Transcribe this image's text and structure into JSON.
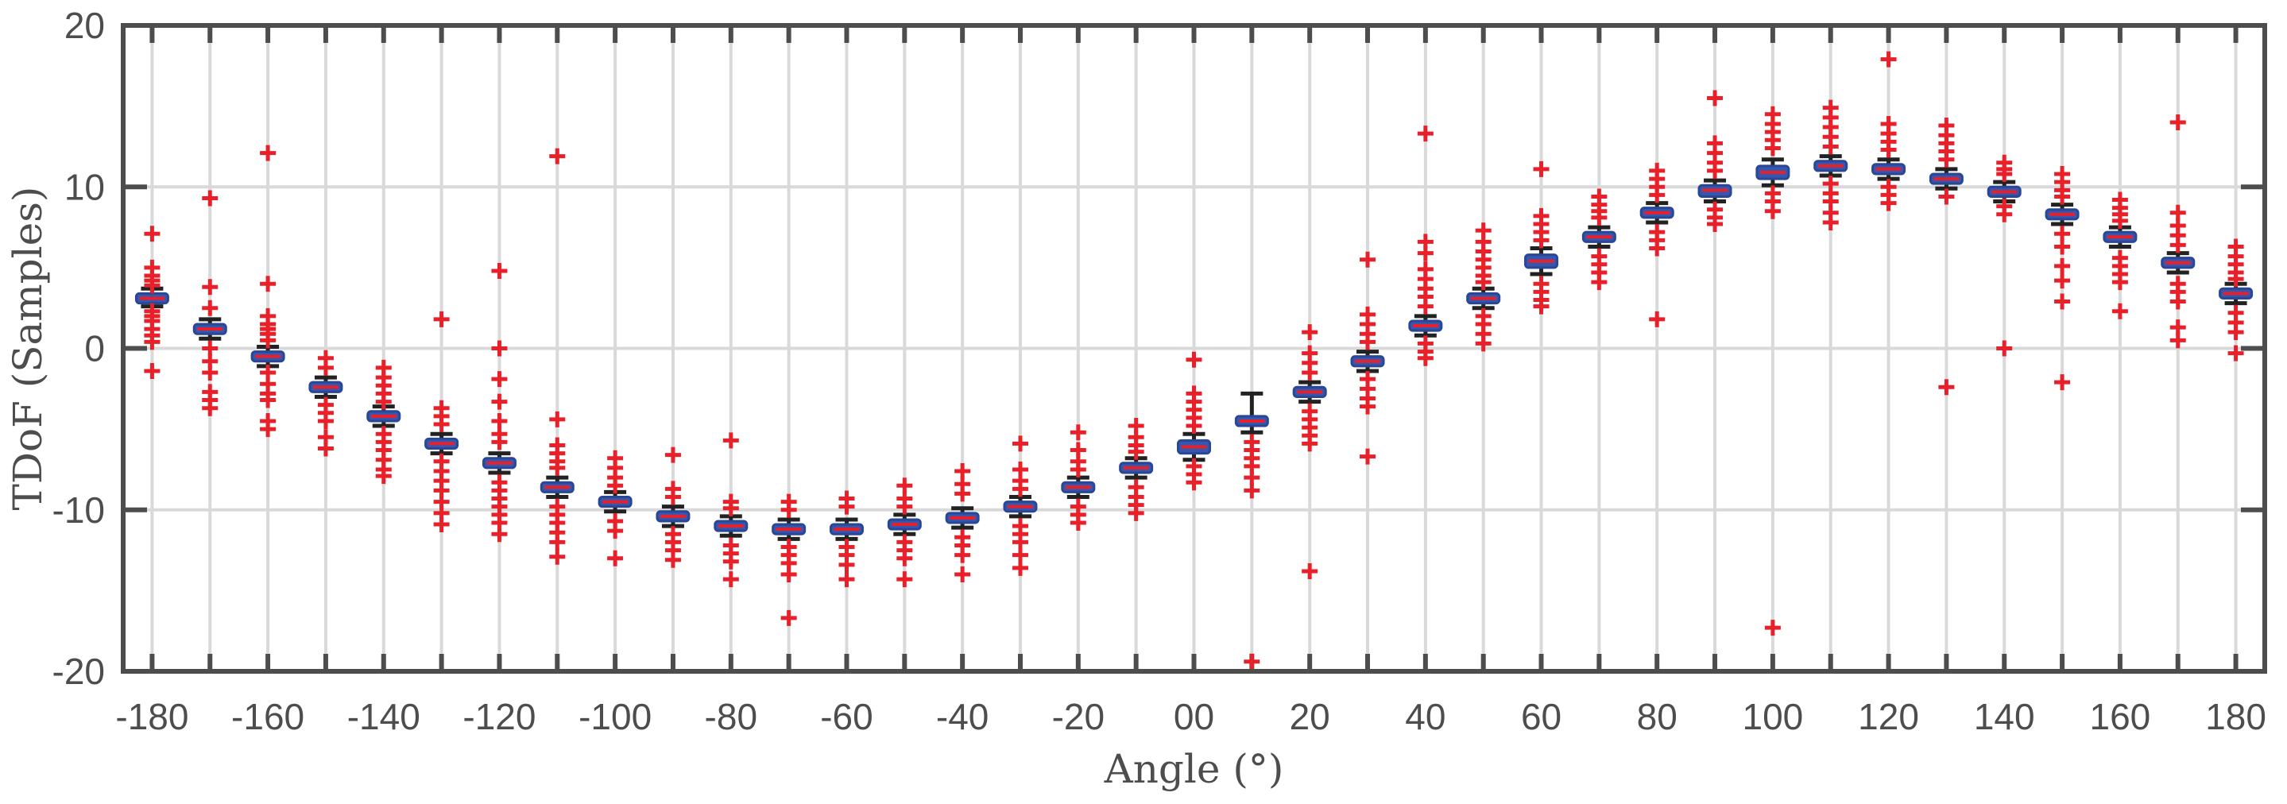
{
  "chart_data": {
    "type": "box",
    "xlabel": "Angle (°)",
    "ylabel": "TDoF (Samples)",
    "xlim": [
      -185,
      185
    ],
    "ylim": [
      -20,
      20
    ],
    "x_ticks": [
      -180,
      -160,
      -140,
      -120,
      -100,
      -80,
      -60,
      -40,
      -20,
      0,
      20,
      40,
      60,
      80,
      100,
      120,
      140,
      160,
      180
    ],
    "x_tick_labels": [
      "-180",
      "-160",
      "-140",
      "-120",
      "-100",
      "-80",
      "-60",
      "-40",
      "-20",
      "00",
      "20",
      "40",
      "60",
      "80",
      "100",
      "120",
      "140",
      "160",
      "180"
    ],
    "y_ticks": [
      -20,
      -10,
      0,
      10,
      20
    ],
    "y_tick_labels": [
      "-20",
      "-10",
      "0",
      "10",
      "20"
    ],
    "grid": true,
    "colors": {
      "box": "#3557b0",
      "median": "#e8202a",
      "outlier": "#e8202a",
      "whisker": "#222222",
      "axis": "#4d4d4d",
      "grid": "#d9d9d9"
    },
    "boxes": [
      {
        "angle": -180,
        "median": 3.1,
        "q1": 2.8,
        "q3": 3.4,
        "whisker_low": 2.6,
        "whisker_high": 3.7,
        "outliers": [
          7.1,
          5.0,
          4.5,
          4.2,
          3.9,
          2.3,
          2.0,
          1.7,
          1.2,
          0.8,
          0.4,
          -1.4
        ]
      },
      {
        "angle": -170,
        "median": 1.2,
        "q1": 0.9,
        "q3": 1.5,
        "whisker_low": 0.6,
        "whisker_high": 1.8,
        "outliers": [
          9.3,
          3.8,
          2.5,
          0.0,
          -0.8,
          -1.5,
          -2.7,
          -3.2,
          -3.7
        ]
      },
      {
        "angle": -160,
        "median": -0.5,
        "q1": -0.8,
        "q3": -0.2,
        "whisker_low": -1.1,
        "whisker_high": 0.1,
        "outliers": [
          12.1,
          4.0,
          2.0,
          1.5,
          1.2,
          0.9,
          0.5,
          -1.5,
          -2.2,
          -2.8,
          -3.2,
          -4.5,
          -5.0
        ]
      },
      {
        "angle": -150,
        "median": -2.4,
        "q1": -2.7,
        "q3": -2.1,
        "whisker_low": -3.0,
        "whisker_high": -1.8,
        "outliers": [
          -0.6,
          -1.2,
          -3.5,
          -4.0,
          -4.5,
          -5.5,
          -6.2
        ]
      },
      {
        "angle": -140,
        "median": -4.2,
        "q1": -4.5,
        "q3": -3.9,
        "whisker_low": -4.8,
        "whisker_high": -3.6,
        "outliers": [
          -1.2,
          -1.8,
          -2.3,
          -2.8,
          -3.3,
          -5.3,
          -5.8,
          -6.3,
          -6.9,
          -7.5,
          -7.9
        ]
      },
      {
        "angle": -130,
        "median": -5.9,
        "q1": -6.2,
        "q3": -5.6,
        "whisker_low": -6.5,
        "whisker_high": -5.3,
        "outliers": [
          1.8,
          -3.7,
          -4.2,
          -4.7,
          -7.0,
          -7.6,
          -8.2,
          -8.8,
          -9.5,
          -10.2,
          -10.9
        ]
      },
      {
        "angle": -120,
        "median": -7.1,
        "q1": -7.4,
        "q3": -6.8,
        "whisker_low": -7.7,
        "whisker_high": -6.5,
        "outliers": [
          4.8,
          0.0,
          -1.9,
          -3.3,
          -4.5,
          -5.3,
          -5.8,
          -8.3,
          -8.8,
          -9.3,
          -9.8,
          -10.3,
          -10.8,
          -11.5
        ]
      },
      {
        "angle": -110,
        "median": -8.6,
        "q1": -8.9,
        "q3": -8.3,
        "whisker_low": -9.2,
        "whisker_high": -8.0,
        "outliers": [
          11.9,
          -4.4,
          -6.0,
          -6.5,
          -7.0,
          -7.4,
          -9.8,
          -10.3,
          -10.8,
          -11.4,
          -12.0,
          -12.9
        ]
      },
      {
        "angle": -100,
        "median": -9.5,
        "q1": -9.8,
        "q3": -9.2,
        "whisker_low": -10.1,
        "whisker_high": -8.9,
        "outliers": [
          -6.8,
          -7.4,
          -8.0,
          -8.5,
          -10.7,
          -11.3,
          -13.0
        ]
      },
      {
        "angle": -90,
        "median": -10.4,
        "q1": -10.7,
        "q3": -10.1,
        "whisker_low": -11.0,
        "whisker_high": -9.8,
        "outliers": [
          -6.6,
          -8.7,
          -9.2,
          -11.5,
          -12.0,
          -12.5,
          -13.1
        ]
      },
      {
        "angle": -80,
        "median": -11.0,
        "q1": -11.3,
        "q3": -10.7,
        "whisker_low": -11.6,
        "whisker_high": -10.4,
        "outliers": [
          -5.7,
          -9.5,
          -9.9,
          -12.2,
          -12.7,
          -13.2,
          -14.3
        ]
      },
      {
        "angle": -70,
        "median": -11.2,
        "q1": -11.5,
        "q3": -10.9,
        "whisker_low": -11.8,
        "whisker_high": -10.6,
        "outliers": [
          -9.5,
          -10.0,
          -12.3,
          -12.8,
          -13.3,
          -14.0,
          -16.7
        ]
      },
      {
        "angle": -60,
        "median": -11.2,
        "q1": -11.5,
        "q3": -10.9,
        "whisker_low": -11.8,
        "whisker_high": -10.6,
        "outliers": [
          -9.3,
          -9.8,
          -12.3,
          -12.8,
          -13.4,
          -14.3
        ]
      },
      {
        "angle": -50,
        "median": -10.9,
        "q1": -11.2,
        "q3": -10.6,
        "whisker_low": -11.5,
        "whisker_high": -10.3,
        "outliers": [
          -8.5,
          -9.3,
          -9.8,
          -12.0,
          -12.5,
          -13.0,
          -14.3
        ]
      },
      {
        "angle": -40,
        "median": -10.5,
        "q1": -10.8,
        "q3": -10.2,
        "whisker_low": -11.1,
        "whisker_high": -9.9,
        "outliers": [
          -7.6,
          -8.4,
          -9.0,
          -11.7,
          -12.2,
          -12.8,
          -14.0
        ]
      },
      {
        "angle": -30,
        "median": -9.8,
        "q1": -10.1,
        "q3": -9.5,
        "whisker_low": -10.4,
        "whisker_high": -9.2,
        "outliers": [
          -5.9,
          -7.5,
          -8.2,
          -8.7,
          -11.0,
          -11.5,
          -12.0,
          -12.8,
          -13.6
        ]
      },
      {
        "angle": -20,
        "median": -8.6,
        "q1": -8.9,
        "q3": -8.3,
        "whisker_low": -9.2,
        "whisker_high": -8.0,
        "outliers": [
          -5.2,
          -6.3,
          -7.0,
          -7.5,
          -9.8,
          -10.3,
          -10.8
        ]
      },
      {
        "angle": -10,
        "median": -7.4,
        "q1": -7.7,
        "q3": -7.1,
        "whisker_low": -8.0,
        "whisker_high": -6.8,
        "outliers": [
          -4.8,
          -5.5,
          -6.0,
          -6.4,
          -8.6,
          -9.2,
          -9.7,
          -10.2
        ]
      },
      {
        "angle": 0,
        "median": -6.1,
        "q1": -6.5,
        "q3": -5.7,
        "whisker_low": -6.9,
        "whisker_high": -5.3,
        "outliers": [
          -0.7,
          -2.8,
          -3.3,
          -3.8,
          -4.3,
          -4.8,
          -7.3,
          -7.8,
          -8.3
        ]
      },
      {
        "angle": 10,
        "median": -4.5,
        "q1": -4.8,
        "q3": -4.2,
        "whisker_low": -5.2,
        "whisker_high": -2.8,
        "outliers": [
          -5.8,
          -6.3,
          -6.8,
          -7.3,
          -8.0,
          -8.8,
          -19.4
        ]
      },
      {
        "angle": 20,
        "median": -2.7,
        "q1": -3.0,
        "q3": -2.4,
        "whisker_low": -3.3,
        "whisker_high": -2.1,
        "outliers": [
          1.0,
          -0.3,
          -0.9,
          -1.5,
          -3.9,
          -4.4,
          -4.9,
          -5.4,
          -5.9,
          -13.8
        ]
      },
      {
        "angle": 30,
        "median": -0.8,
        "q1": -1.1,
        "q3": -0.5,
        "whisker_low": -1.4,
        "whisker_high": -0.2,
        "outliers": [
          5.5,
          2.1,
          1.5,
          0.9,
          0.4,
          -1.9,
          -2.5,
          -3.1,
          -3.6,
          -6.7
        ]
      },
      {
        "angle": 40,
        "median": 1.4,
        "q1": 1.1,
        "q3": 1.7,
        "whisker_low": 0.8,
        "whisker_high": 2.0,
        "outliers": [
          13.3,
          6.6,
          5.9,
          4.9,
          4.3,
          3.7,
          3.2,
          2.6,
          0.3,
          -0.2,
          -0.6
        ]
      },
      {
        "angle": 50,
        "median": 3.1,
        "q1": 2.8,
        "q3": 3.4,
        "whisker_low": 2.5,
        "whisker_high": 3.7,
        "outliers": [
          7.3,
          6.6,
          6.0,
          5.5,
          5.0,
          4.5,
          4.1,
          2.0,
          1.5,
          0.9,
          0.3
        ]
      },
      {
        "angle": 60,
        "median": 5.4,
        "q1": 5.0,
        "q3": 5.8,
        "whisker_low": 4.6,
        "whisker_high": 6.2,
        "outliers": [
          11.1,
          8.2,
          7.7,
          7.2,
          6.7,
          4.0,
          3.5,
          3.0,
          2.6
        ]
      },
      {
        "angle": 70,
        "median": 6.9,
        "q1": 6.6,
        "q3": 7.2,
        "whisker_low": 6.3,
        "whisker_high": 7.5,
        "outliers": [
          9.4,
          8.9,
          8.5,
          8.1,
          5.7,
          5.2,
          4.7,
          4.1
        ]
      },
      {
        "angle": 80,
        "median": 8.4,
        "q1": 8.1,
        "q3": 8.7,
        "whisker_low": 7.8,
        "whisker_high": 9.0,
        "outliers": [
          11.0,
          10.5,
          10.0,
          9.5,
          7.2,
          6.7,
          6.2,
          1.8
        ]
      },
      {
        "angle": 90,
        "median": 9.8,
        "q1": 9.4,
        "q3": 10.1,
        "whisker_low": 9.1,
        "whisker_high": 10.4,
        "outliers": [
          15.5,
          12.7,
          12.1,
          11.5,
          11.0,
          8.6,
          8.1,
          7.7
        ]
      },
      {
        "angle": 100,
        "median": 10.9,
        "q1": 10.5,
        "q3": 11.3,
        "whisker_low": 10.1,
        "whisker_high": 11.7,
        "outliers": [
          14.5,
          13.9,
          13.4,
          12.9,
          12.4,
          9.6,
          9.1,
          8.5,
          -17.3
        ]
      },
      {
        "angle": 110,
        "median": 11.3,
        "q1": 11.0,
        "q3": 11.6,
        "whisker_low": 10.7,
        "whisker_high": 11.9,
        "outliers": [
          14.9,
          14.3,
          13.7,
          13.1,
          12.5,
          10.2,
          9.6,
          9.1,
          8.4,
          7.8
        ]
      },
      {
        "angle": 120,
        "median": 11.1,
        "q1": 10.8,
        "q3": 11.4,
        "whisker_low": 10.5,
        "whisker_high": 11.7,
        "outliers": [
          17.9,
          13.9,
          13.3,
          12.8,
          12.3,
          10.0,
          9.5,
          9.0
        ]
      },
      {
        "angle": 130,
        "median": 10.5,
        "q1": 10.2,
        "q3": 10.8,
        "whisker_low": 9.9,
        "whisker_high": 11.1,
        "outliers": [
          13.8,
          13.2,
          12.7,
          12.2,
          11.7,
          9.4,
          -2.4
        ]
      },
      {
        "angle": 140,
        "median": 9.7,
        "q1": 9.4,
        "q3": 10.0,
        "whisker_low": 9.1,
        "whisker_high": 10.3,
        "outliers": [
          11.5,
          11.1,
          10.8,
          8.8,
          8.3,
          0.0
        ]
      },
      {
        "angle": 150,
        "median": 8.3,
        "q1": 8.0,
        "q3": 8.6,
        "whisker_low": 7.7,
        "whisker_high": 8.9,
        "outliers": [
          10.8,
          10.3,
          9.8,
          9.4,
          7.1,
          6.3,
          5.1,
          4.2,
          2.9,
          -2.1
        ]
      },
      {
        "angle": 160,
        "median": 6.9,
        "q1": 6.6,
        "q3": 7.2,
        "whisker_low": 6.3,
        "whisker_high": 7.5,
        "outliers": [
          9.2,
          8.7,
          8.3,
          7.9,
          5.6,
          5.1,
          4.6,
          4.1,
          2.3
        ]
      },
      {
        "angle": 170,
        "median": 5.3,
        "q1": 5.0,
        "q3": 5.6,
        "whisker_low": 4.7,
        "whisker_high": 5.9,
        "outliers": [
          14.0,
          8.4,
          7.6,
          7.0,
          6.4,
          4.0,
          3.5,
          2.9,
          1.3,
          0.5
        ]
      },
      {
        "angle": 180,
        "median": 3.4,
        "q1": 3.1,
        "q3": 3.7,
        "whisker_low": 2.8,
        "whisker_high": 4.0,
        "outliers": [
          6.3,
          5.7,
          5.2,
          4.7,
          4.3,
          2.2,
          1.6,
          1.0,
          -0.3
        ]
      }
    ]
  }
}
